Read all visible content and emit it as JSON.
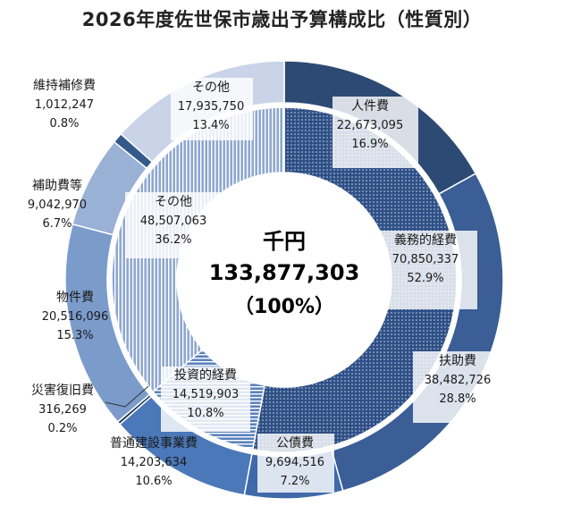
{
  "chart_data": {
    "type": "donut",
    "title": "2026年度佐世保市歳出予算構成比（性質別）",
    "center": {
      "unit": "千円",
      "total": "133,877,303",
      "percent": "（100%）"
    },
    "outer": [
      {
        "name": "人件費",
        "value": 22673095,
        "value_text": "22,673,095",
        "percent": "16.9%",
        "color": "#2c4a74"
      },
      {
        "name": "扶助費",
        "value": 38482726,
        "value_text": "38,482,726",
        "percent": "28.8%",
        "color": "#3a5e95"
      },
      {
        "name": "公債費",
        "value": 9694516,
        "value_text": "9,694,516",
        "percent": "7.2%",
        "color": "#3f69a8"
      },
      {
        "name": "普通建設事業費",
        "value": 14203634,
        "value_text": "14,203,634",
        "percent": "10.6%",
        "color": "#4a78b8"
      },
      {
        "name": "災害復旧費",
        "value": 316269,
        "value_text": "316,269",
        "percent": "0.2%",
        "color": "#1e3a5f"
      },
      {
        "name": "物件費",
        "value": 20516096,
        "value_text": "20,516,096",
        "percent": "15.3%",
        "color": "#7b9bcb"
      },
      {
        "name": "補助費等",
        "value": 9042970,
        "value_text": "9,042,970",
        "percent": "6.7%",
        "color": "#9ab1d6"
      },
      {
        "name": "維持補修費",
        "value": 1012247,
        "value_text": "1,012,247",
        "percent": "0.8%",
        "color": "#335a8a"
      },
      {
        "name": "その他",
        "value": 17935750,
        "value_text": "17,935,750",
        "percent": "13.4%",
        "color": "#c9d4e8"
      }
    ],
    "inner": [
      {
        "name": "義務的経費",
        "value": 70850337,
        "value_text": "70,850,337",
        "percent": "52.9%",
        "color": "#2f5086",
        "pattern": "dots"
      },
      {
        "name": "投資的経費",
        "value": 14519903,
        "value_text": "14,519,903",
        "percent": "10.8%",
        "color": "#5b82bd",
        "pattern": "hlines"
      },
      {
        "name": "その他",
        "value": 48507063,
        "value_text": "48,507,063",
        "percent": "36.2%",
        "color": "#8ea7d0",
        "pattern": "vlines"
      }
    ]
  }
}
